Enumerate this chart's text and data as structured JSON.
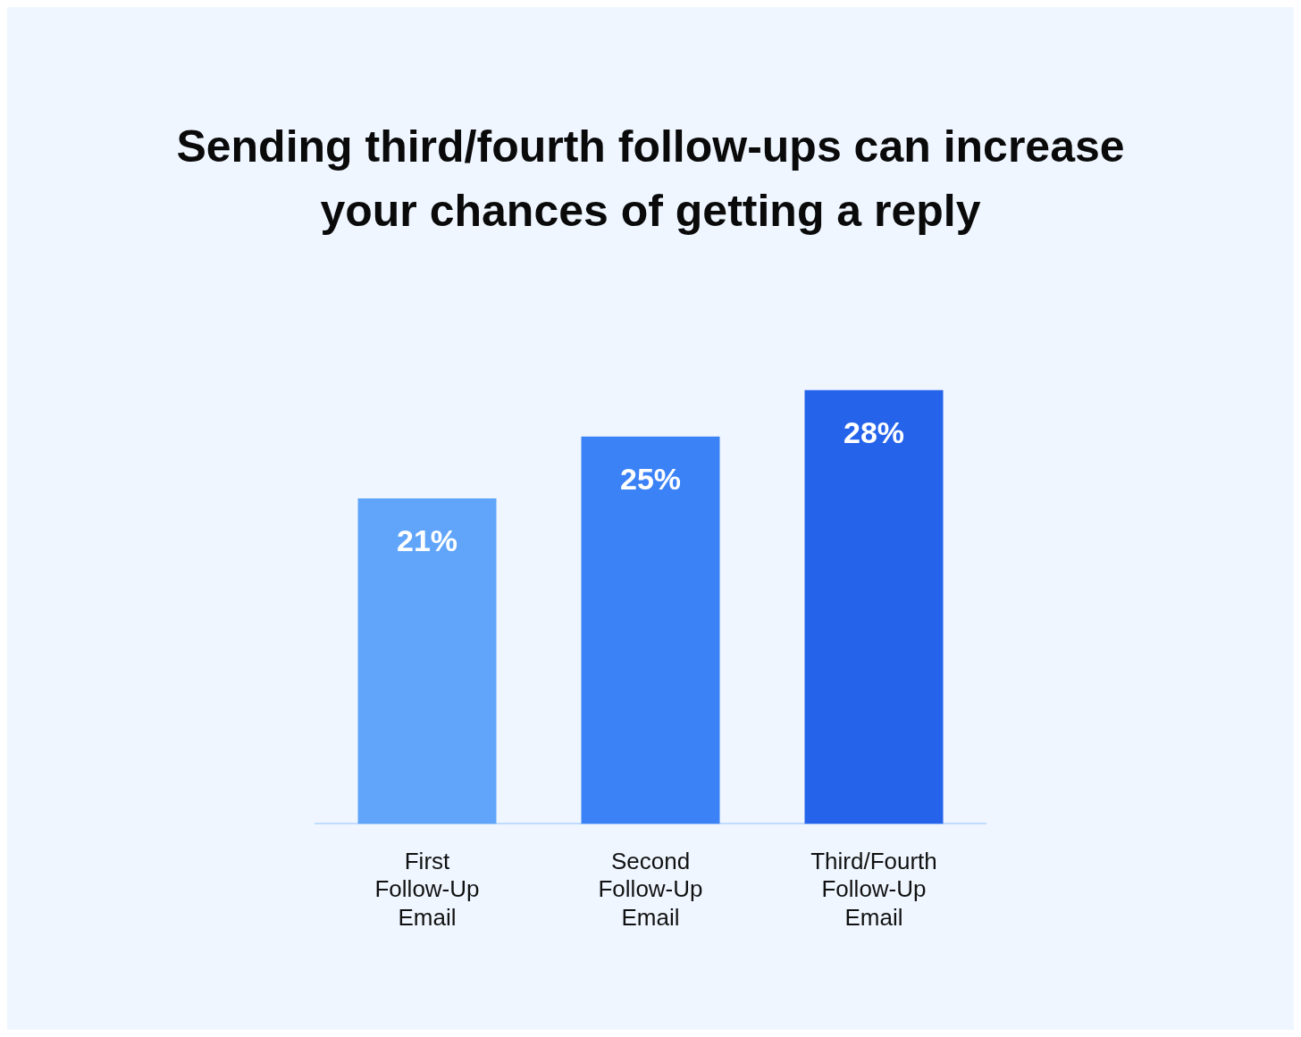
{
  "chart_data": {
    "type": "bar",
    "title": "Sending third/fourth follow-ups can increase your chances of getting a reply",
    "categories": [
      "First Follow-Up Email",
      "Second Follow-Up Email",
      "Third/Fourth Follow-Up Email"
    ],
    "values": [
      21,
      25,
      28
    ],
    "colors": [
      "#60a5fa",
      "#3b82f6",
      "#2563eb"
    ],
    "value_labels": [
      "21%",
      "25%",
      "28%"
    ],
    "grid": false,
    "legend": false
  }
}
